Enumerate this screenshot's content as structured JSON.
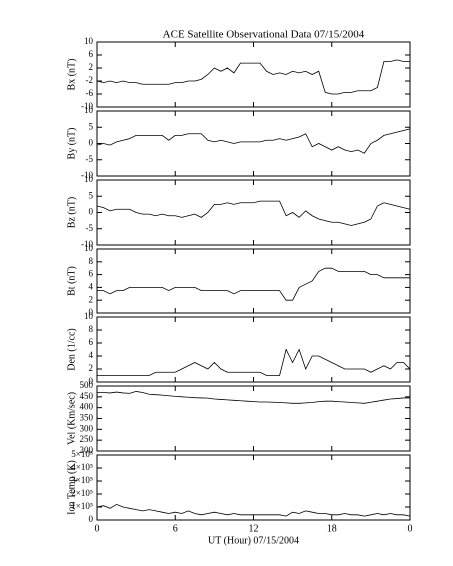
{
  "chart_data": [
    {
      "type": "line",
      "title": "ACE Satellite Observational Data   07/15/2004",
      "ylabel": "Bx (nT)",
      "color": "#000000",
      "xlim": [
        0,
        24
      ],
      "ylim": [
        -10,
        10
      ],
      "yticks": [
        -10,
        -6,
        -2,
        2,
        6,
        10
      ],
      "x": [
        0,
        0.5,
        1,
        1.5,
        2,
        2.5,
        3,
        3.5,
        4,
        4.5,
        5,
        5.5,
        6,
        6.5,
        7,
        7.5,
        8,
        8.5,
        9,
        9.5,
        10,
        10.5,
        11,
        11.5,
        12,
        12.5,
        13,
        13.5,
        14,
        14.5,
        15,
        15.5,
        16,
        16.5,
        17,
        17.5,
        18,
        18.5,
        19,
        19.5,
        20,
        20.5,
        21,
        21.5,
        22,
        22.5,
        23,
        23.5,
        24
      ],
      "values": [
        -2,
        -2.5,
        -2,
        -2.5,
        -2,
        -2.5,
        -2.5,
        -3,
        -3,
        -3,
        -3,
        -3,
        -2.5,
        -2.5,
        -2,
        -2,
        -1.5,
        0,
        2,
        1,
        2,
        0.5,
        3.5,
        3.5,
        3.5,
        3.5,
        1,
        0,
        0.5,
        0,
        1,
        0.5,
        1,
        0,
        1,
        -5.5,
        -6,
        -6,
        -5.5,
        -5.5,
        -5,
        -5,
        -5,
        -4,
        4,
        4,
        4.5,
        4,
        4
      ]
    },
    {
      "type": "line",
      "ylabel": "By (nT)",
      "color": "#000000",
      "xlim": [
        0,
        24
      ],
      "ylim": [
        -10,
        10
      ],
      "yticks": [
        -10,
        -5,
        0,
        5,
        10
      ],
      "x": [
        0,
        0.5,
        1,
        1.5,
        2,
        2.5,
        3,
        3.5,
        4,
        4.5,
        5,
        5.5,
        6,
        6.5,
        7,
        7.5,
        8,
        8.5,
        9,
        9.5,
        10,
        10.5,
        11,
        11.5,
        12,
        12.5,
        13,
        13.5,
        14,
        14.5,
        15,
        15.5,
        16,
        16.5,
        17,
        17.5,
        18,
        18.5,
        19,
        19.5,
        20,
        20.5,
        21,
        21.5,
        22,
        22.5,
        23,
        23.5,
        24
      ],
      "values": [
        -0.5,
        0,
        -0.5,
        0.5,
        1,
        1.5,
        2.5,
        2.5,
        2.5,
        2.5,
        2.5,
        1,
        2.5,
        2.5,
        3,
        3,
        3,
        1,
        0.5,
        1,
        0.5,
        0,
        0.5,
        0.5,
        0.5,
        0.5,
        1,
        1,
        1.5,
        1,
        1.5,
        2,
        3,
        -1,
        0,
        -1,
        -2,
        -1,
        -2,
        -2.5,
        -2,
        -3,
        0,
        1,
        2.5,
        3,
        3.5,
        4,
        4.5
      ]
    },
    {
      "type": "line",
      "ylabel": "Bz (nT)",
      "color": "#000000",
      "xlim": [
        0,
        24
      ],
      "ylim": [
        -10,
        10
      ],
      "yticks": [
        -10,
        -5,
        0,
        5,
        10
      ],
      "x": [
        0,
        0.5,
        1,
        1.5,
        2,
        2.5,
        3,
        3.5,
        4,
        4.5,
        5,
        5.5,
        6,
        6.5,
        7,
        7.5,
        8,
        8.5,
        9,
        9.5,
        10,
        10.5,
        11,
        11.5,
        12,
        12.5,
        13,
        13.5,
        14,
        14.5,
        15,
        15.5,
        16,
        16.5,
        17,
        17.5,
        18,
        18.5,
        19,
        19.5,
        20,
        20.5,
        21,
        21.5,
        22,
        22.5,
        23,
        23.5,
        24
      ],
      "values": [
        2,
        1.5,
        0.5,
        1,
        1,
        1,
        0,
        -0.5,
        -0.5,
        -1,
        -0.5,
        -1,
        -1,
        -1.5,
        -1,
        -0.5,
        -1.5,
        0,
        2.5,
        2.5,
        3,
        2.5,
        3,
        3,
        3,
        3.5,
        3.5,
        3.5,
        3.5,
        -1,
        0,
        -1.5,
        0.5,
        -1,
        -2,
        -2.5,
        -3,
        -3,
        -3.5,
        -4,
        -3.5,
        -3,
        -2,
        2,
        3,
        2.5,
        2,
        1.5,
        1
      ]
    },
    {
      "type": "line",
      "ylabel": "Bt (nT)",
      "color": "#000000",
      "xlim": [
        0,
        24
      ],
      "ylim": [
        0,
        10
      ],
      "yticks": [
        0,
        2,
        4,
        6,
        8,
        10
      ],
      "x": [
        0,
        0.5,
        1,
        1.5,
        2,
        2.5,
        3,
        3.5,
        4,
        4.5,
        5,
        5.5,
        6,
        6.5,
        7,
        7.5,
        8,
        8.5,
        9,
        9.5,
        10,
        10.5,
        11,
        11.5,
        12,
        12.5,
        13,
        13.5,
        14,
        14.5,
        15,
        15.5,
        16,
        16.5,
        17,
        17.5,
        18,
        18.5,
        19,
        19.5,
        20,
        20.5,
        21,
        21.5,
        22,
        22.5,
        23,
        23.5,
        24
      ],
      "values": [
        3.5,
        3.5,
        3,
        3.5,
        3.5,
        4,
        4,
        4,
        4,
        4,
        4,
        3.5,
        4,
        4,
        4,
        4,
        3.5,
        3.5,
        3.5,
        3.5,
        3.5,
        3,
        3.5,
        3.5,
        3.5,
        3.5,
        3.5,
        3.5,
        3.5,
        2,
        2,
        4,
        4.5,
        5,
        6.5,
        7,
        7,
        6.5,
        6.5,
        6.5,
        6.5,
        6.5,
        6,
        6,
        5.5,
        5.5,
        5.5,
        5.5,
        5.5
      ]
    },
    {
      "type": "line",
      "ylabel": "Den (1/cc)",
      "color": "#000000",
      "xlim": [
        0,
        24
      ],
      "ylim": [
        0,
        10
      ],
      "yticks": [
        0,
        2,
        4,
        6,
        8,
        10
      ],
      "x": [
        0,
        0.5,
        1,
        1.5,
        2,
        2.5,
        3,
        3.5,
        4,
        4.5,
        5,
        5.5,
        6,
        6.5,
        7,
        7.5,
        8,
        8.5,
        9,
        9.5,
        10,
        10.5,
        11,
        11.5,
        12,
        12.5,
        13,
        13.5,
        14,
        14.5,
        15,
        15.5,
        16,
        16.5,
        17,
        17.5,
        18,
        18.5,
        19,
        19.5,
        20,
        20.5,
        21,
        21.5,
        22,
        22.5,
        23,
        23.5,
        24
      ],
      "values": [
        1,
        1,
        1,
        1,
        1,
        1,
        1,
        1,
        1,
        1.5,
        1.5,
        1.5,
        1.5,
        2,
        2.5,
        3,
        2.5,
        2,
        3,
        2,
        1.5,
        1.5,
        1.5,
        1.5,
        1.5,
        1.5,
        1,
        1,
        1,
        5,
        3,
        5,
        2,
        4,
        4,
        3.5,
        3,
        2.5,
        2,
        2,
        2,
        2,
        1.5,
        2,
        2.5,
        2,
        3,
        3,
        2
      ]
    },
    {
      "type": "line",
      "ylabel": "Vel (Km/sec)",
      "color": "#000000",
      "xlim": [
        0,
        24
      ],
      "ylim": [
        200,
        500
      ],
      "yticks": [
        200,
        250,
        300,
        350,
        400,
        450,
        500
      ],
      "x": [
        0,
        0.5,
        1,
        1.5,
        2,
        2.5,
        3,
        3.5,
        4,
        4.5,
        5,
        5.5,
        6,
        6.5,
        7,
        7.5,
        8,
        8.5,
        9,
        9.5,
        10,
        10.5,
        11,
        11.5,
        12,
        12.5,
        13,
        13.5,
        14,
        14.5,
        15,
        15.5,
        16,
        16.5,
        17,
        17.5,
        18,
        18.5,
        19,
        19.5,
        20,
        20.5,
        21,
        21.5,
        22,
        22.5,
        23,
        23.5,
        24
      ],
      "values": [
        470,
        470,
        468,
        472,
        468,
        466,
        475,
        470,
        462,
        460,
        458,
        455,
        452,
        450,
        448,
        446,
        445,
        444,
        440,
        438,
        436,
        434,
        432,
        430,
        428,
        426,
        426,
        425,
        424,
        422,
        420,
        420,
        422,
        424,
        428,
        430,
        430,
        428,
        426,
        424,
        422,
        420,
        425,
        430,
        435,
        440,
        442,
        445,
        445
      ]
    },
    {
      "type": "line",
      "ylabel": "Ion Temp (K)",
      "xlabel": "UT (Hour)   07/15/2004",
      "color": "#000000",
      "xlim": [
        0,
        24
      ],
      "ylim": [
        0,
        500000
      ],
      "yticks": [
        0,
        {
          "value": 100000,
          "label": "1×10⁵"
        },
        {
          "value": 200000,
          "label": "2×10⁵"
        },
        {
          "value": 300000,
          "label": "3×10⁵"
        },
        {
          "value": 400000,
          "label": "4×10⁵"
        },
        {
          "value": 500000,
          "label": "5×10⁵"
        }
      ],
      "xticks": [
        0,
        6,
        12,
        18,
        {
          "value": 24,
          "label": "0"
        }
      ],
      "x": [
        0,
        0.5,
        1,
        1.5,
        2,
        2.5,
        3,
        3.5,
        4,
        4.5,
        5,
        5.5,
        6,
        6.5,
        7,
        7.5,
        8,
        8.5,
        9,
        9.5,
        10,
        10.5,
        11,
        11.5,
        12,
        12.5,
        13,
        13.5,
        14,
        14.5,
        15,
        15.5,
        16,
        16.5,
        17,
        17.5,
        18,
        18.5,
        19,
        19.5,
        20,
        20.5,
        21,
        21.5,
        22,
        22.5,
        23,
        23.5,
        24
      ],
      "values": [
        100000,
        110000,
        90000,
        120000,
        100000,
        90000,
        80000,
        70000,
        80000,
        70000,
        60000,
        50000,
        60000,
        50000,
        70000,
        50000,
        40000,
        50000,
        60000,
        50000,
        40000,
        50000,
        40000,
        40000,
        40000,
        40000,
        40000,
        40000,
        40000,
        30000,
        60000,
        50000,
        70000,
        60000,
        50000,
        50000,
        40000,
        40000,
        50000,
        40000,
        40000,
        30000,
        40000,
        50000,
        40000,
        50000,
        40000,
        40000,
        30000
      ]
    }
  ]
}
